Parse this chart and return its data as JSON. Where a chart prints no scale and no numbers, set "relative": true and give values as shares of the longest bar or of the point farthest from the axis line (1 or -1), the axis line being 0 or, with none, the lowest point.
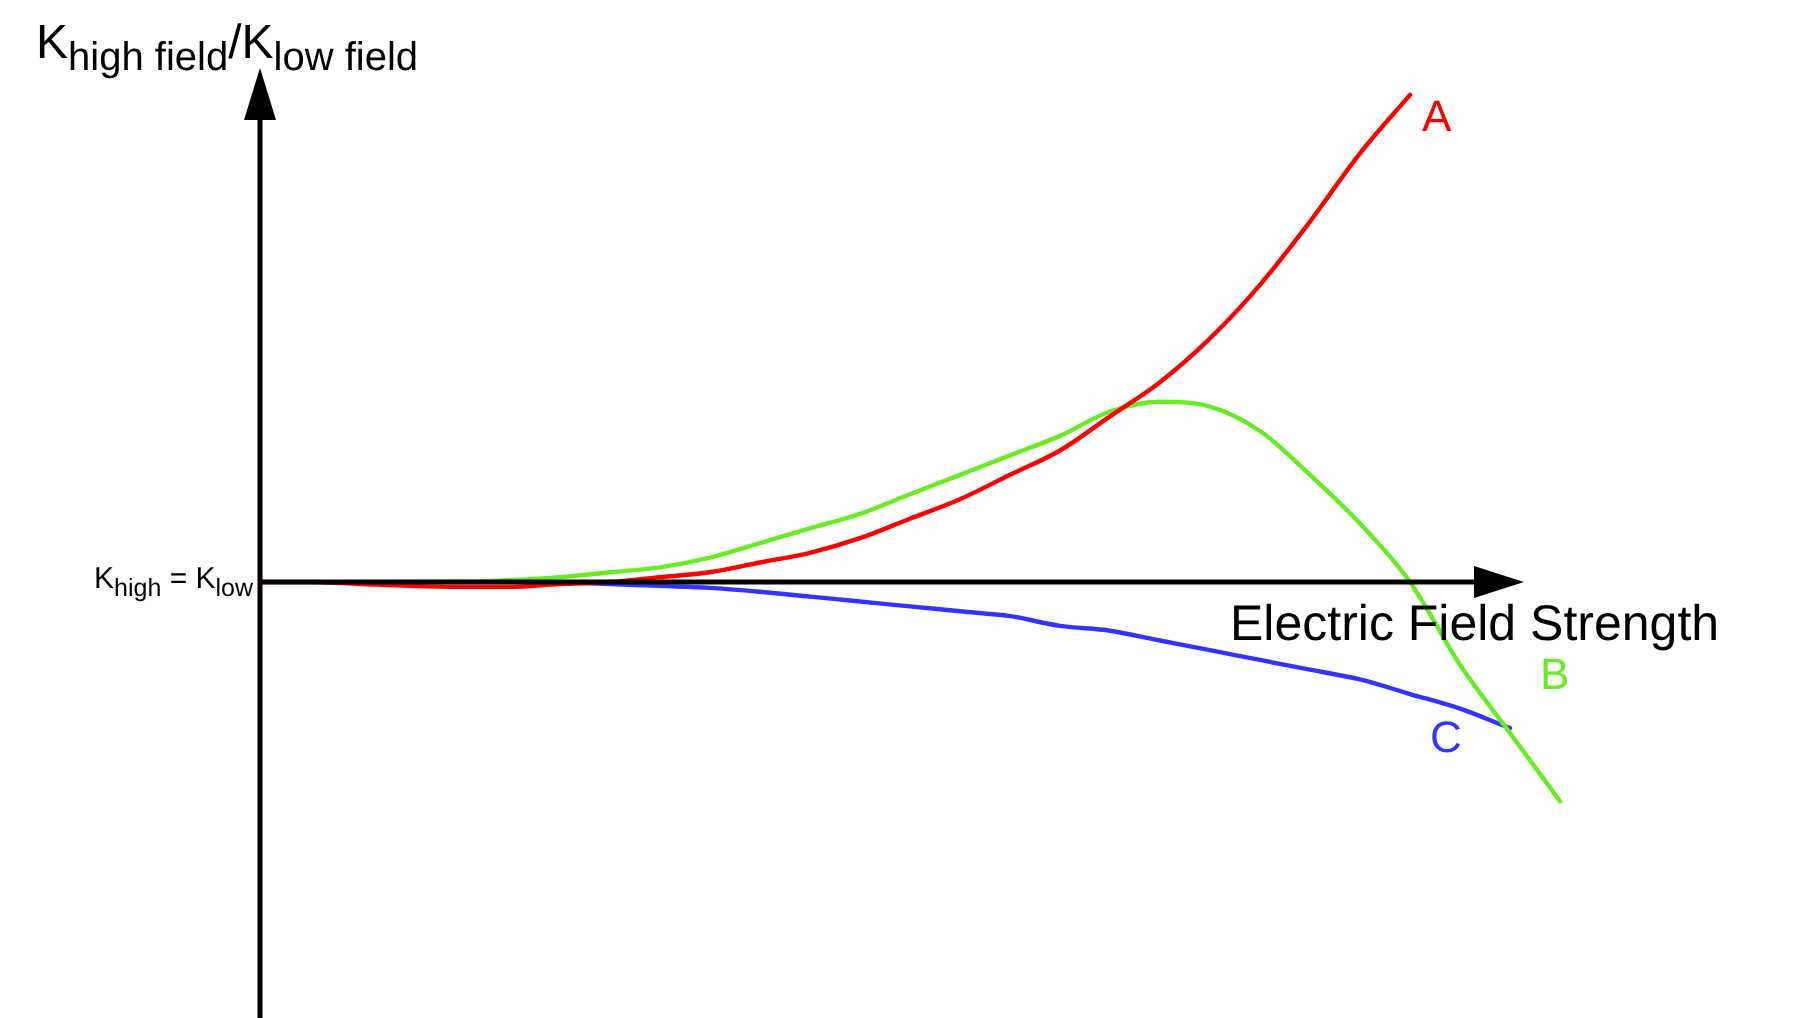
{
  "chart_data": {
    "type": "line",
    "relative": true,
    "ylabel": "K$_{high field}$/K$_{low field}$",
    "xlabel": "Electric Field Strength",
    "annotations": [
      "K$_{high}$ = K$_{low}$"
    ],
    "categories": [
      null,
      null,
      null,
      null,
      null,
      null,
      null,
      null,
      null,
      null,
      null,
      null,
      null,
      null,
      null,
      null,
      null,
      null,
      null,
      null,
      null,
      null,
      null,
      null,
      null,
      null,
      null
    ],
    "series": [
      {
        "name": "A",
        "color": "#ff0000",
        "values": [
          0,
          0,
          -0.004,
          -0.008,
          -0.01,
          -0.01,
          -0.004,
          0,
          0.01,
          0.02,
          0.04,
          0.06,
          0.09,
          0.13,
          0.17,
          0.22,
          0.27,
          0.34,
          0.41,
          0.5,
          0.61,
          0.74,
          0.88,
          1,
          null,
          null,
          null
        ]
      },
      {
        "name": "B",
        "color": "#66ee22",
        "values": [
          null,
          null,
          null,
          0,
          0,
          0.004,
          0.01,
          0.02,
          0.03,
          0.05,
          0.08,
          0.11,
          0.14,
          0.18,
          0.22,
          0.26,
          0.3,
          0.35,
          0.37,
          0.36,
          0.31,
          0.22,
          0.12,
          0,
          -0.17,
          -0.31,
          -0.45
        ]
      },
      {
        "name": "C",
        "color": "#3333ff",
        "values": [
          null,
          null,
          null,
          null,
          null,
          null,
          0,
          -0.004,
          -0.008,
          -0.012,
          -0.02,
          -0.03,
          -0.04,
          -0.05,
          -0.06,
          -0.07,
          -0.09,
          -0.1,
          -0.12,
          -0.14,
          -0.16,
          -0.18,
          -0.2,
          -0.23,
          -0.26,
          -0.3,
          null
        ]
      }
    ],
    "legend": false,
    "marker": "none",
    "line_style": "solid"
  }
}
